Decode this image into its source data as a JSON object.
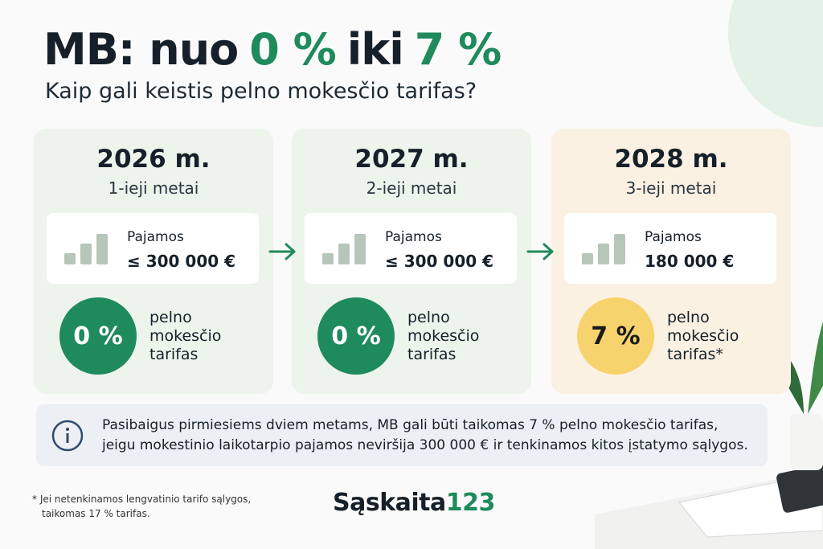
{
  "title": {
    "parts": [
      "MB: nuo",
      "0 %",
      "iki",
      "7 %"
    ]
  },
  "subtitle": "Kaip gali keistis pelno mokesčio tarifas?",
  "cards": [
    {
      "year": "2026 m.",
      "label": "1-ieji metai",
      "income_label": "Pajamos",
      "income": "≤ 300 000 €",
      "rate": "0 %",
      "rate_label": [
        "pelno",
        "mokesčio",
        "tarifas"
      ]
    },
    {
      "year": "2027 m.",
      "label": "2-ieji metai",
      "income_label": "Pajamos",
      "income": "≤ 300 000 €",
      "rate": "0 %",
      "rate_label": [
        "pelno",
        "mokesčio",
        "tarifas"
      ]
    },
    {
      "year": "2028 m.",
      "label": "3-ieji metai",
      "income_label": "Pajamos",
      "income": "180 000 €",
      "rate": "7 %",
      "rate_label": [
        "pelno",
        "mokesčio",
        "tarifas*"
      ]
    }
  ],
  "info": [
    "Pasibaigus pirmiesiems dviem metams, MB gali būti taikomas 7 % pelno mokesčio tarifas,",
    "jeigu mokestinio laikotarpio pajamos neviršija 300 000 € ir tenkinamos kitos įstatymo sąlygos."
  ],
  "footnote": [
    "* Jei netenkinamos lengvatinio tarifo sąlygos,",
    "taikomas 17 % tarifas."
  ],
  "brand": {
    "parts": [
      "Sąskaita",
      "123"
    ]
  }
}
